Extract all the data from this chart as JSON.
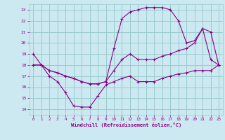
{
  "xlabel": "Windchill (Refroidissement éolien,°C)",
  "bg_color": "#cce8f0",
  "grid_color": "#99cccc",
  "line_color": "#880088",
  "xlim": [
    -0.5,
    23.5
  ],
  "ylim": [
    13.5,
    23.5
  ],
  "xticks": [
    0,
    1,
    2,
    3,
    4,
    5,
    6,
    7,
    8,
    9,
    10,
    11,
    12,
    13,
    14,
    15,
    16,
    17,
    18,
    19,
    20,
    21,
    22,
    23
  ],
  "yticks": [
    14,
    15,
    16,
    17,
    18,
    19,
    20,
    21,
    22,
    23
  ],
  "series": [
    {
      "x": [
        0,
        1,
        2,
        3,
        4,
        5,
        6,
        7,
        8,
        9,
        10,
        11,
        12,
        13,
        14,
        15,
        16,
        17,
        18,
        19,
        20,
        21,
        22,
        23
      ],
      "y": [
        19,
        18,
        17,
        16.5,
        15.5,
        14.3,
        14.2,
        14.2,
        15.2,
        16.2,
        16.5,
        16.8,
        17.0,
        16.5,
        16.5,
        16.5,
        16.8,
        17.0,
        17.2,
        17.3,
        17.5,
        17.5,
        17.5,
        18.0
      ]
    },
    {
      "x": [
        0,
        1,
        2,
        3,
        4,
        5,
        6,
        7,
        8,
        9,
        10,
        11,
        12,
        13,
        14,
        15,
        16,
        17,
        18,
        19,
        20,
        21,
        22,
        23
      ],
      "y": [
        18,
        18,
        17.5,
        17.3,
        17.0,
        16.8,
        16.5,
        16.3,
        16.3,
        16.5,
        17.5,
        18.5,
        19.0,
        18.5,
        18.5,
        18.5,
        18.8,
        19.0,
        19.3,
        19.5,
        20.0,
        21.3,
        21.0,
        18.0
      ]
    },
    {
      "x": [
        0,
        1,
        2,
        3,
        4,
        5,
        6,
        7,
        8,
        9,
        10,
        11,
        12,
        13,
        14,
        15,
        16,
        17,
        18,
        19,
        20,
        21,
        22,
        23
      ],
      "y": [
        18,
        18,
        17.5,
        17.3,
        17.0,
        16.8,
        16.5,
        16.3,
        16.3,
        16.5,
        19.5,
        22.2,
        22.8,
        23.0,
        23.2,
        23.2,
        23.2,
        23.0,
        22.0,
        20.0,
        20.2,
        21.3,
        18.5,
        18.0
      ]
    }
  ]
}
